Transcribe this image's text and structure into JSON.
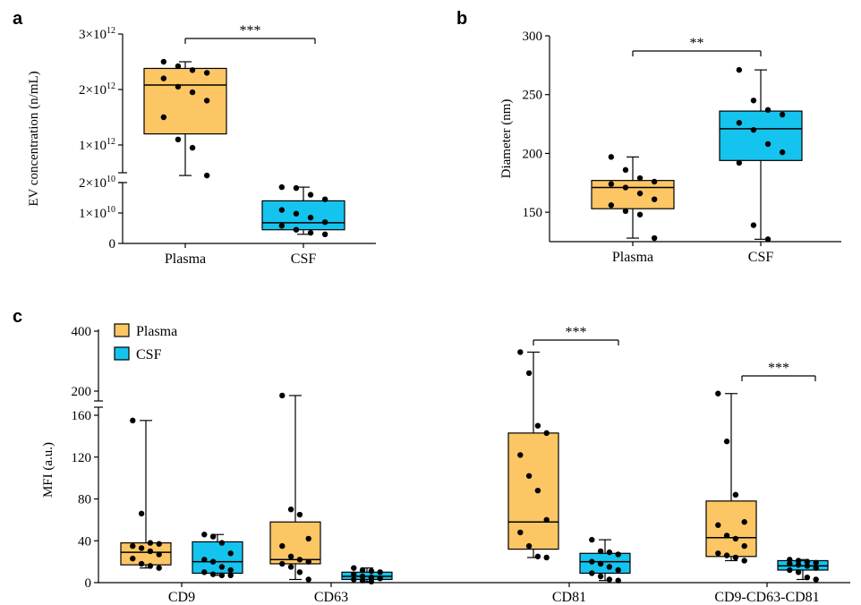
{
  "colors": {
    "plasma": "#FDC664",
    "csf": "#15C4EE",
    "stroke": "#000000"
  },
  "panels": {
    "a": {
      "letter": "a",
      "ylabel": "EV concentration (n/mL)",
      "upper_ticks": [
        {
          "value": 1000000000000.0,
          "mant": "1",
          "exp": "12"
        },
        {
          "value": 2000000000000.0,
          "mant": "2",
          "exp": "12"
        },
        {
          "value": 3000000000000.0,
          "mant": "3",
          "exp": "12"
        }
      ],
      "lower_ticks": [
        {
          "value": 0,
          "mant": "0",
          "exp": ""
        },
        {
          "value": 10000000000.0,
          "mant": "1",
          "exp": "10"
        },
        {
          "value": 20000000000.0,
          "mant": "2",
          "exp": "10"
        }
      ],
      "times": "×10",
      "significance": "***"
    },
    "b": {
      "letter": "b",
      "ylabel": "Diameter (nm)",
      "ticks": [
        "150",
        "200",
        "250",
        "300"
      ],
      "significance": "**"
    },
    "c": {
      "letter": "c",
      "ylabel": "MFI (a.u.)",
      "ticks": [
        "0",
        "40",
        "80",
        "120",
        "160",
        "200",
        "400"
      ],
      "significance": [
        "***",
        "***"
      ]
    }
  },
  "legend": {
    "plasma": "Plasma",
    "csf": "CSF"
  },
  "chart_data": [
    {
      "panel": "a",
      "type": "box",
      "ylabel": "EV concentration (n/mL)",
      "yscale": "broken (lower 0–2×10^10, upper 1–3×10^12)",
      "categories": [
        "Plasma",
        "CSF"
      ],
      "boxes": [
        {
          "group": "Plasma",
          "min": 450000000000.0,
          "q1": 1200000000000.0,
          "median": 2080000000000.0,
          "q3": 2380000000000.0,
          "max": 2500000000000.0,
          "points": [
            2500000000000.0,
            2420000000000.0,
            2350000000000.0,
            2300000000000.0,
            2200000000000.0,
            2050000000000.0,
            1950000000000.0,
            1800000000000.0,
            1500000000000.0,
            1100000000000.0,
            950000000000.0,
            450000000000.0
          ]
        },
        {
          "group": "CSF",
          "min": 3000000000.0,
          "q1": 4500000000.0,
          "median": 6800000000.0,
          "q3": 14000000000.0,
          "max": 18500000000.0,
          "points": [
            18500000000.0,
            18200000000.0,
            16000000000.0,
            14500000000.0,
            11000000000.0,
            9800000000.0,
            8500000000.0,
            7000000000.0,
            5800000000.0,
            4500000000.0,
            3500000000.0,
            3000000000.0
          ]
        }
      ],
      "significance": "***"
    },
    {
      "panel": "b",
      "type": "box",
      "ylabel": "Diameter (nm)",
      "ylim": [
        125,
        300
      ],
      "categories": [
        "Plasma",
        "CSF"
      ],
      "boxes": [
        {
          "group": "Plasma",
          "min": 128,
          "q1": 153,
          "median": 171,
          "q3": 177,
          "max": 197,
          "points": [
            197,
            186,
            179,
            176,
            174,
            171,
            166,
            161,
            156,
            151,
            148,
            128
          ]
        },
        {
          "group": "CSF",
          "min": 127,
          "q1": 194,
          "median": 221,
          "q3": 236,
          "max": 271,
          "points": [
            271,
            245,
            237,
            233,
            226,
            220,
            208,
            201,
            192,
            139,
            127
          ]
        }
      ],
      "significance": "**"
    },
    {
      "panel": "c",
      "type": "box",
      "ylabel": "MFI (a.u.)",
      "yscale": "broken (0–160 linear, 160–400 compressed)",
      "categories": [
        "CD9",
        "CD63",
        "CD81",
        "CD9-CD63-CD81"
      ],
      "series": [
        {
          "name": "Plasma",
          "boxes": [
            {
              "min": 14,
              "q1": 17,
              "median": 29,
              "q3": 38,
              "max": 155,
              "points": [
                155,
                66,
                38,
                37,
                35,
                33,
                30,
                27,
                23,
                18,
                16,
                14
              ]
            },
            {
              "min": 3,
              "q1": 18,
              "median": 22,
              "q3": 58,
              "max": 182,
              "points": [
                182,
                70,
                65,
                42,
                35,
                25,
                22,
                20,
                18,
                15,
                10,
                3
              ]
            },
            {
              "min": 24,
              "q1": 32,
              "median": 58,
              "q3": 143,
              "max": 330,
              "points": [
                330,
                260,
                150,
                143,
                122,
                102,
                88,
                60,
                48,
                35,
                25,
                24
              ]
            },
            {
              "min": 21,
              "q1": 25,
              "median": 43,
              "q3": 78,
              "max": 190,
              "points": [
                190,
                135,
                84,
                58,
                55,
                45,
                42,
                35,
                28,
                26,
                24,
                21
              ]
            }
          ]
        },
        {
          "name": "CSF",
          "boxes": [
            {
              "min": 7,
              "q1": 9,
              "median": 20,
              "q3": 39,
              "max": 46,
              "points": [
                46,
                44,
                38,
                28,
                22,
                20,
                15,
                12,
                10,
                8,
                7,
                7
              ]
            },
            {
              "min": 1,
              "q1": 3,
              "median": 6,
              "q3": 10,
              "max": 14,
              "points": [
                14,
                12,
                11,
                10,
                8,
                6,
                5,
                4,
                3,
                2,
                1
              ]
            },
            {
              "min": 2,
              "q1": 9,
              "median": 20,
              "q3": 28,
              "max": 41,
              "points": [
                41,
                30,
                29,
                27,
                20,
                18,
                15,
                12,
                9,
                6,
                3,
                2
              ]
            },
            {
              "min": 3,
              "q1": 12,
              "median": 16,
              "q3": 21,
              "max": 22,
              "points": [
                22,
                21,
                20,
                19,
                18,
                17,
                16,
                14,
                12,
                10,
                5,
                3
              ]
            }
          ]
        }
      ],
      "significance": [
        {
          "category": "CD81",
          "label": "***"
        },
        {
          "category": "CD9-CD63-CD81",
          "label": "***"
        }
      ]
    }
  ]
}
